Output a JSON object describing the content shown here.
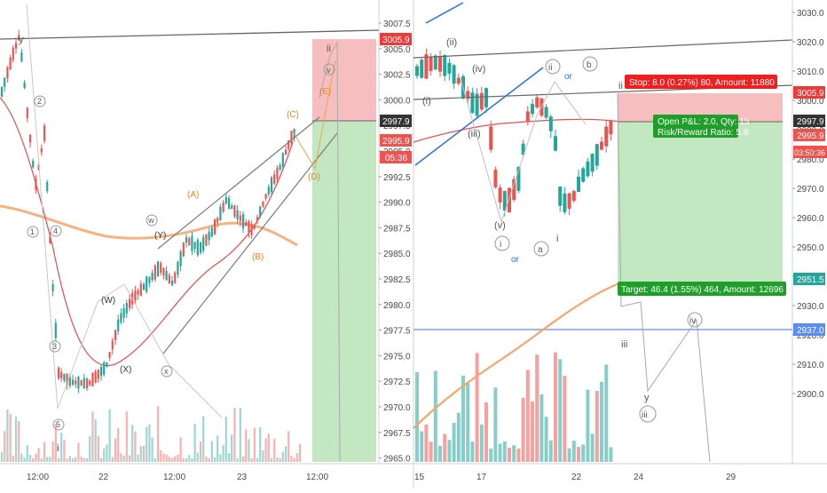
{
  "left_panel": {
    "price_axis": {
      "ticks": [
        "3007.5",
        "3005.0",
        "3002.5",
        "3000.0",
        "2997.5",
        "2995.0",
        "2992.5",
        "2990.0",
        "2987.5",
        "2985.0",
        "2982.5",
        "2980.0",
        "2977.5",
        "2975.0",
        "2972.5",
        "2970.0",
        "2967.5",
        "2965.0"
      ]
    },
    "time_axis": {
      "ticks": [
        "12:00",
        "22",
        "12:00",
        "23",
        "12:00"
      ]
    },
    "price_tags": [
      {
        "text": "3005.9",
        "color": "#ef3a3a"
      },
      {
        "text": "2997.9",
        "color": "#333333"
      },
      {
        "text": "2995.9",
        "color": "#ef5350"
      },
      {
        "text": "05:36",
        "color": "#ef5350"
      }
    ],
    "wave_labels": [
      "y",
      "ii",
      "v",
      "(E)",
      "(C)",
      "(A)",
      "(Y)",
      "(W)",
      "(X)",
      "(B)",
      "(D)",
      "w",
      "x",
      "1",
      "2",
      "3",
      "4",
      "5",
      "i"
    ],
    "reward_zone_color": "#b9e3b5",
    "risk_zone_color": "#f5b3b3"
  },
  "right_panel": {
    "price_axis": {
      "ticks": [
        "3030.0",
        "3020.0",
        "3010.0",
        "3000.0",
        "2990.0",
        "2980.0",
        "2970.0",
        "2960.0",
        "2950.0",
        "2940.0",
        "2930.0",
        "2920.0",
        "2910.0",
        "2900.0"
      ]
    },
    "time_axis": {
      "ticks": [
        "15",
        "17",
        "22",
        "24",
        "29"
      ]
    },
    "price_tags": [
      {
        "text": "3005.9",
        "color": "#ef3a3a"
      },
      {
        "text": "2997.9",
        "color": "#333333"
      },
      {
        "text": "2995.9",
        "color": "#ef5350"
      },
      {
        "text": "03:50:36",
        "color": "#ef5350"
      },
      {
        "text": "2951.5",
        "color": "#26a69a"
      },
      {
        "text": "2937.0",
        "color": "#5b8def"
      }
    ],
    "stop_label": "Stop: 8.0 (0.27%) 80, Amount: 11880",
    "pnl_label_line1": "Open P&L: 2.0, Qty: 15",
    "pnl_label_line2": "Risk/Reward Ratio: 5.8",
    "target_label": "Target: 46.4 (1.55%) 464, Amount: 12696",
    "wave_labels": [
      "(ii)",
      "(iv)",
      "(i)",
      "(iii)",
      "(v)",
      "ii",
      "b",
      "or",
      "i",
      "a",
      "i",
      "or",
      "ii",
      "iii",
      "iv",
      "iii",
      "y"
    ]
  },
  "colors": {
    "up": "#26a69a",
    "down": "#ef5350",
    "ma_short": "#e05050",
    "ma_long": "#f5a66a",
    "wedge": "#808080",
    "channel": "#2f6fd8"
  }
}
